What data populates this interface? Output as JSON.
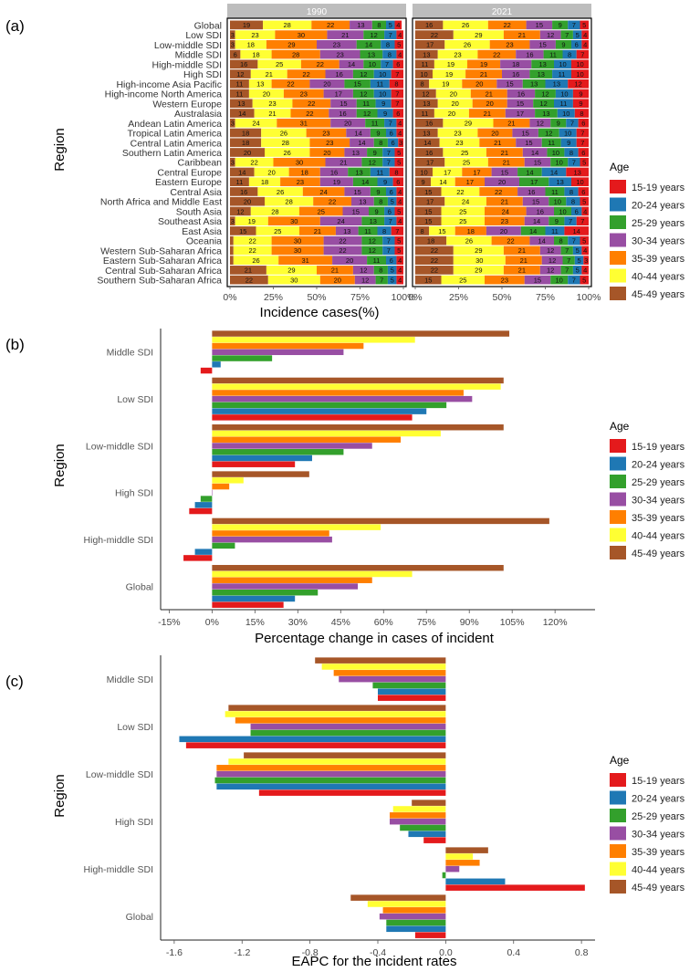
{
  "colors": {
    "ages": [
      "#e41a1c",
      "#1f78b4",
      "#33a02c",
      "#984ea3",
      "#ff7f00",
      "#ffff33",
      "#a65628"
    ],
    "panel_bg": "#ffffff",
    "strip_bg": "#bdbdbd"
  },
  "chart_data": [
    {
      "panel_label": "(a)",
      "type": "bar",
      "orientation": "horizontal",
      "stacked": "percent",
      "facets": [
        "1990",
        "2021"
      ],
      "xlabel": "Incidence cases(%)",
      "ylabel": "Region",
      "x_ticks": [
        "0%",
        "25%",
        "50%",
        "75%",
        "100%"
      ],
      "legend": {
        "title": "Age",
        "position": "right",
        "entries": [
          "15-19 years",
          "20-24 years",
          "25-29 years",
          "30-34 years",
          "35-39 years",
          "40-44 years",
          "45-49 years"
        ]
      },
      "categories": [
        "Global",
        "Low SDI",
        "Low-middle SDI",
        "Middle SDI",
        "High-middle SDI",
        "High SDI",
        "High-income Asia Pacific",
        "High-income North America",
        "Western Europe",
        "Australasia",
        "Andean Latin America",
        "Tropical Latin America",
        "Central Latin America",
        "Southern Latin America",
        "Caribbean",
        "Central Europe",
        "Eastern Europe",
        "Central Asia",
        "North Africa and Middle East",
        "South Asia",
        "Southeast Asia",
        "East Asia",
        "Oceania",
        "Western Sub-Saharan Africa",
        "Eastern Sub-Saharan Africa",
        "Central Sub-Saharan Africa",
        "Southern Sub-Saharan Africa"
      ],
      "stack_order": [
        "45-49 years",
        "40-44 years",
        "35-39 years",
        "30-34 years",
        "25-29 years",
        "20-24 years",
        "15-19 years"
      ],
      "values_1990": [
        [
          4,
          5,
          8,
          13,
          22,
          28,
          19
        ],
        [
          4,
          7,
          12,
          21,
          30,
          23,
          3
        ],
        [
          5,
          8,
          14,
          23,
          29,
          18,
          3
        ],
        [
          4,
          8,
          13,
          23,
          28,
          18,
          6
        ],
        [
          6,
          7,
          10,
          14,
          22,
          25,
          16
        ],
        [
          7,
          10,
          12,
          16,
          22,
          21,
          12
        ],
        [
          8,
          11,
          15,
          20,
          22,
          13,
          11
        ],
        [
          7,
          10,
          12,
          17,
          23,
          20,
          11
        ],
        [
          7,
          9,
          11,
          15,
          22,
          23,
          13
        ],
        [
          6,
          9,
          12,
          16,
          22,
          21,
          14
        ],
        [
          4,
          7,
          11,
          20,
          31,
          24,
          3
        ],
        [
          4,
          6,
          9,
          14,
          23,
          26,
          18
        ],
        [
          3,
          6,
          8,
          14,
          23,
          28,
          18
        ],
        [
          5,
          7,
          9,
          13,
          20,
          26,
          20
        ],
        [
          5,
          7,
          12,
          21,
          30,
          22,
          3
        ],
        [
          8,
          11,
          13,
          16,
          18,
          20,
          14
        ],
        [
          6,
          9,
          14,
          19,
          23,
          18,
          11
        ],
        [
          4,
          6,
          9,
          15,
          24,
          26,
          16
        ],
        [
          4,
          5,
          8,
          13,
          22,
          28,
          20
        ],
        [
          5,
          6,
          9,
          15,
          25,
          28,
          12
        ],
        [
          4,
          7,
          13,
          24,
          30,
          19,
          3
        ],
        [
          7,
          8,
          11,
          13,
          21,
          25,
          15
        ],
        [
          5,
          7,
          12,
          22,
          30,
          22,
          2
        ],
        [
          5,
          7,
          12,
          22,
          30,
          22,
          2
        ],
        [
          4,
          6,
          11,
          20,
          31,
          26,
          2
        ],
        [
          4,
          5,
          8,
          12,
          21,
          29,
          21
        ],
        [
          4,
          5,
          7,
          12,
          20,
          30,
          22
        ]
      ],
      "values_2021": [
        [
          5,
          7,
          9,
          15,
          22,
          26,
          16
        ],
        [
          4,
          5,
          7,
          12,
          21,
          29,
          22
        ],
        [
          4,
          6,
          9,
          15,
          23,
          26,
          17
        ],
        [
          7,
          8,
          11,
          16,
          22,
          23,
          13
        ],
        [
          10,
          10,
          13,
          18,
          19,
          19,
          11
        ],
        [
          10,
          11,
          13,
          16,
          21,
          19,
          10
        ],
        [
          12,
          13,
          13,
          15,
          20,
          19,
          8
        ],
        [
          9,
          10,
          12,
          16,
          21,
          20,
          12
        ],
        [
          9,
          11,
          12,
          15,
          20,
          20,
          13
        ],
        [
          8,
          10,
          13,
          17,
          21,
          20,
          11
        ],
        [
          6,
          7,
          9,
          12,
          21,
          29,
          16
        ],
        [
          7,
          10,
          12,
          15,
          20,
          23,
          13
        ],
        [
          7,
          9,
          11,
          15,
          21,
          23,
          14
        ],
        [
          6,
          8,
          10,
          14,
          21,
          25,
          16
        ],
        [
          5,
          7,
          10,
          15,
          21,
          25,
          17
        ],
        [
          13,
          14,
          14,
          15,
          17,
          17,
          10
        ],
        [
          10,
          13,
          17,
          20,
          17,
          14,
          9
        ],
        [
          6,
          8,
          11,
          16,
          22,
          22,
          15
        ],
        [
          5,
          8,
          10,
          15,
          21,
          24,
          17
        ],
        [
          4,
          6,
          10,
          16,
          24,
          25,
          15
        ],
        [
          7,
          7,
          9,
          14,
          23,
          25,
          15
        ],
        [
          14,
          11,
          14,
          20,
          18,
          15,
          8
        ],
        [
          5,
          7,
          8,
          14,
          22,
          26,
          18
        ],
        [
          4,
          5,
          7,
          12,
          21,
          29,
          22
        ],
        [
          3,
          5,
          7,
          12,
          21,
          30,
          22
        ],
        [
          4,
          5,
          7,
          12,
          21,
          29,
          22
        ],
        [
          5,
          7,
          10,
          15,
          23,
          25,
          15
        ]
      ]
    },
    {
      "panel_label": "(b)",
      "type": "bar",
      "orientation": "horizontal",
      "grouped": true,
      "xlabel": "Percentage change in cases of incident",
      "ylabel": "Region",
      "xlim": [
        -18,
        134
      ],
      "x_ticks": [
        -15,
        0,
        15,
        30,
        45,
        60,
        75,
        90,
        105,
        120
      ],
      "x_tick_labels": [
        "-15%",
        "0%",
        "15%",
        "30%",
        "45%",
        "60%",
        "75%",
        "90%",
        "105%",
        "120%"
      ],
      "legend": {
        "title": "Age",
        "position": "right",
        "entries": [
          "15-19 years",
          "20-24 years",
          "25-29 years",
          "30-34 years",
          "35-39 years",
          "40-44 years",
          "45-49 years"
        ]
      },
      "categories": [
        "Middle SDI",
        "Low SDI",
        "Low-middle SDI",
        "High SDI",
        "High-middle SDI",
        "Global"
      ],
      "series": [
        {
          "name": "15-19 years",
          "values": [
            -4,
            70,
            29,
            -8,
            -10,
            25
          ]
        },
        {
          "name": "20-24 years",
          "values": [
            3,
            75,
            35,
            -6,
            -6,
            29
          ]
        },
        {
          "name": "25-29 years",
          "values": [
            21,
            82,
            46,
            -4,
            8,
            37
          ]
        },
        {
          "name": "30-34 years",
          "values": [
            46,
            91,
            56,
            0,
            42,
            51
          ]
        },
        {
          "name": "35-39 years",
          "values": [
            53,
            88,
            66,
            6,
            41,
            56
          ]
        },
        {
          "name": "40-44 years",
          "values": [
            71,
            101,
            80,
            11,
            59,
            70
          ]
        },
        {
          "name": "45-49 years",
          "values": [
            104,
            102,
            102,
            34,
            118,
            102
          ]
        }
      ]
    },
    {
      "panel_label": "(c)",
      "type": "bar",
      "orientation": "horizontal",
      "grouped": true,
      "xlabel": "EAPC for the incident rates",
      "ylabel": "Region",
      "xlim": [
        -1.68,
        0.88
      ],
      "x_ticks": [
        -1.6,
        -1.2,
        -0.8,
        -0.4,
        0.0,
        0.4,
        0.8
      ],
      "x_tick_labels": [
        "-1.6",
        "-1.2",
        "-0.8",
        "-0.4",
        "0.0",
        "0.4",
        "0.8"
      ],
      "legend": {
        "title": "Age",
        "position": "right",
        "entries": [
          "15-19 years",
          "20-24 years",
          "25-29 years",
          "30-34 years",
          "35-39 years",
          "40-44 years",
          "45-49 years"
        ]
      },
      "categories": [
        "Middle SDI",
        "Low SDI",
        "Low-middle SDI",
        "High SDI",
        "High-middle SDI",
        "Global"
      ],
      "series": [
        {
          "name": "15-19 years",
          "values": [
            -0.4,
            -1.53,
            -1.1,
            -0.13,
            0.82,
            -0.18
          ]
        },
        {
          "name": "20-24 years",
          "values": [
            -0.4,
            -1.57,
            -1.35,
            -0.22,
            0.35,
            -0.35
          ]
        },
        {
          "name": "25-29 years",
          "values": [
            -0.43,
            -1.15,
            -1.36,
            -0.27,
            -0.02,
            -0.35
          ]
        },
        {
          "name": "30-34 years",
          "values": [
            -0.63,
            -1.15,
            -1.35,
            -0.33,
            0.08,
            -0.39
          ]
        },
        {
          "name": "35-39 years",
          "values": [
            -0.66,
            -1.24,
            -1.35,
            -0.33,
            0.2,
            -0.37
          ]
        },
        {
          "name": "40-44 years",
          "values": [
            -0.73,
            -1.3,
            -1.28,
            -0.31,
            0.16,
            -0.46
          ]
        },
        {
          "name": "45-49 years",
          "values": [
            -0.77,
            -1.28,
            -1.19,
            -0.2,
            0.25,
            -0.56
          ]
        }
      ]
    }
  ]
}
